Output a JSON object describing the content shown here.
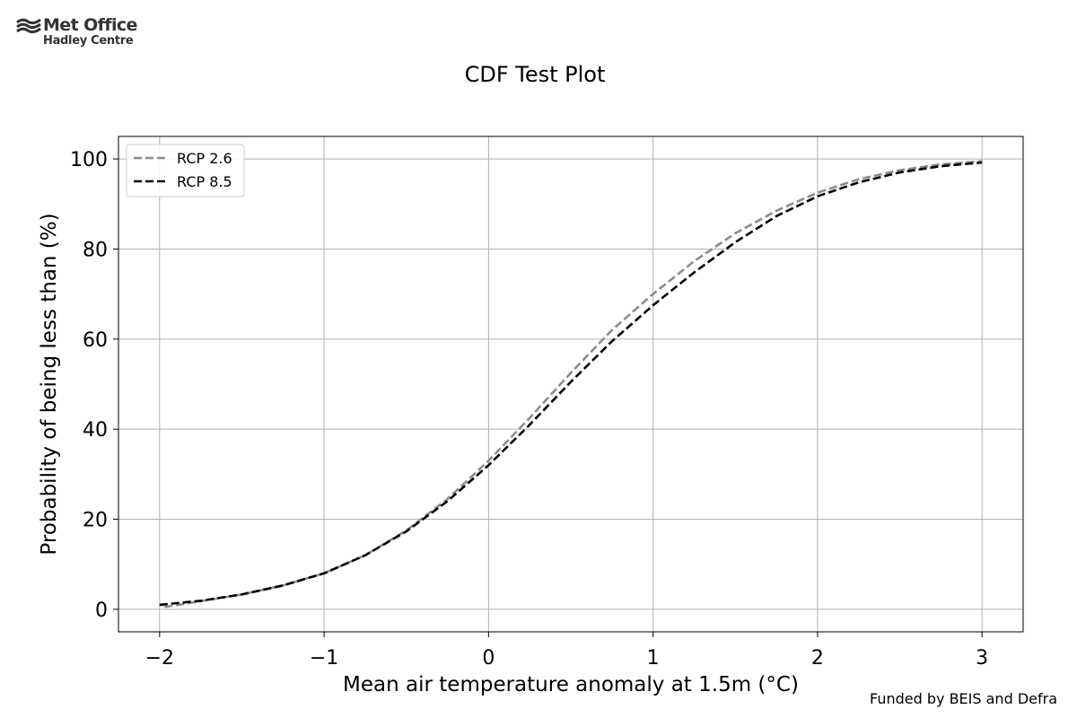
{
  "branding": {
    "logo_main": "Met Office",
    "logo_sub": "Hadley Centre",
    "logo_icon": "met-office-waves-icon"
  },
  "footer": {
    "note": "Funded by BEIS and Defra"
  },
  "chart_data": {
    "type": "line",
    "title": "CDF Test Plot",
    "xlabel": "Mean air temperature anomaly at 1.5m (°C)",
    "ylabel": "Probability of being less than (%)",
    "xlim": [
      -2.25,
      3.25
    ],
    "ylim": [
      -5,
      105
    ],
    "xticks": [
      -2,
      -1,
      0,
      1,
      2,
      3
    ],
    "xtick_labels": [
      "−2",
      "−1",
      "0",
      "1",
      "2",
      "3"
    ],
    "yticks": [
      0,
      20,
      40,
      60,
      80,
      100
    ],
    "ytick_labels": [
      "0",
      "20",
      "40",
      "60",
      "80",
      "100"
    ],
    "grid": true,
    "legend_position": "top-left",
    "series": [
      {
        "name": "RCP 2.6",
        "color": "#8c8c8c",
        "style": "dashed",
        "x": [
          -1.97,
          -1.75,
          -1.5,
          -1.25,
          -1.0,
          -0.75,
          -0.5,
          -0.25,
          0.0,
          0.25,
          0.5,
          0.75,
          1.0,
          1.25,
          1.5,
          1.75,
          2.0,
          2.25,
          2.5,
          2.75,
          3.0
        ],
        "y": [
          0.5,
          1.8,
          3.3,
          5.3,
          8.0,
          12.0,
          17.5,
          24.5,
          33.0,
          42.5,
          52.5,
          62.0,
          70.0,
          77.3,
          83.5,
          88.5,
          92.5,
          95.5,
          97.5,
          98.8,
          99.5
        ]
      },
      {
        "name": "RCP 8.5",
        "color": "#000000",
        "style": "dashed",
        "x": [
          -2.0,
          -1.75,
          -1.5,
          -1.25,
          -1.0,
          -0.75,
          -0.5,
          -0.25,
          0.0,
          0.25,
          0.5,
          0.75,
          1.0,
          1.25,
          1.5,
          1.75,
          2.0,
          2.25,
          2.5,
          2.75,
          3.0
        ],
        "y": [
          1.0,
          1.9,
          3.3,
          5.3,
          8.0,
          12.0,
          17.3,
          24.0,
          32.0,
          41.0,
          50.5,
          59.5,
          67.5,
          74.8,
          81.5,
          87.3,
          91.7,
          94.8,
          97.0,
          98.4,
          99.2
        ]
      }
    ]
  }
}
